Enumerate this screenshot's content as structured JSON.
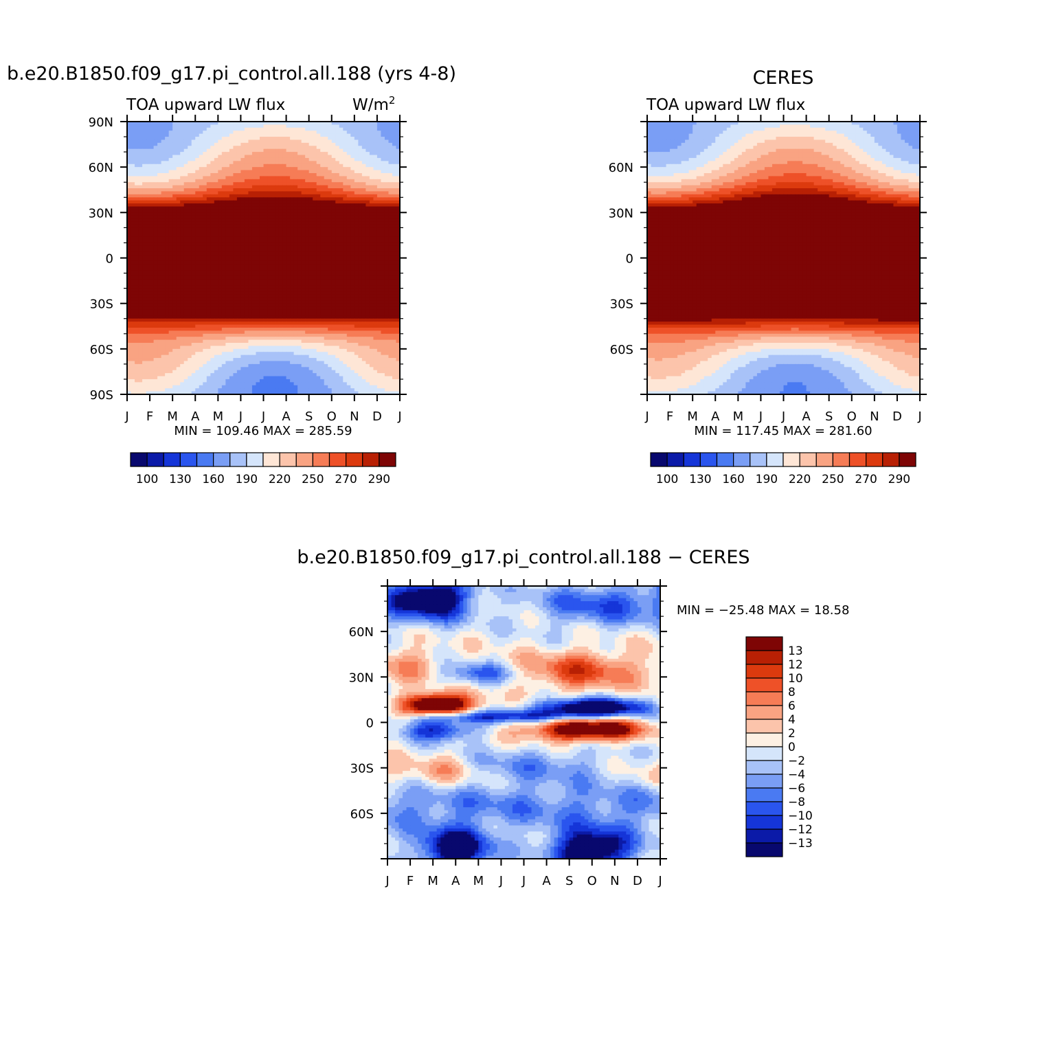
{
  "chart_data": [
    {
      "type": "heatmap",
      "id": "model",
      "title": "b.e20.B1850.f09_g17.pi_control.all.188 (yrs 4-8)",
      "subtitle_left": "TOA upward LW flux",
      "subtitle_right": "W/m",
      "subtitle_right_sup": "2",
      "x_ticks": [
        "J",
        "F",
        "M",
        "A",
        "M",
        "J",
        "J",
        "A",
        "S",
        "O",
        "N",
        "D",
        "J"
      ],
      "y_ticks": [
        "90N",
        "60N",
        "30N",
        "0",
        "30S",
        "60S",
        "90S"
      ],
      "ylim": [
        -90,
        90
      ],
      "min_max_text": "MIN =  109.46  MAX =  285.59",
      "min": 109.46,
      "max": 285.59,
      "colorbar_labels": [
        "100",
        "130",
        "160",
        "190",
        "220",
        "250",
        "270",
        "290"
      ],
      "levels": [
        100,
        110,
        120,
        130,
        140,
        150,
        160,
        170,
        180,
        190,
        200,
        210,
        220,
        230,
        240,
        250,
        260,
        270,
        280,
        290,
        300
      ]
    },
    {
      "type": "heatmap",
      "id": "obs",
      "title": "CERES",
      "subtitle_left": "TOA upward LW flux",
      "x_ticks": [
        "J",
        "F",
        "M",
        "A",
        "M",
        "J",
        "J",
        "A",
        "S",
        "O",
        "N",
        "D",
        "J"
      ],
      "y_ticks": [
        "60N",
        "30N",
        "0",
        "30S",
        "60S"
      ],
      "ylim": [
        -90,
        90
      ],
      "min_max_text": "MIN =  117.45  MAX =  281.60",
      "min": 117.45,
      "max": 281.6,
      "colorbar_labels": [
        "100",
        "130",
        "160",
        "190",
        "220",
        "250",
        "270",
        "290"
      ]
    },
    {
      "type": "heatmap",
      "id": "diff",
      "title": "b.e20.B1850.f09_g17.pi_control.all.188 − CERES",
      "x_ticks": [
        "J",
        "F",
        "M",
        "A",
        "M",
        "J",
        "J",
        "A",
        "S",
        "O",
        "N",
        "D",
        "J"
      ],
      "y_ticks": [
        "60N",
        "30N",
        "0",
        "30S",
        "60S"
      ],
      "ylim": [
        -90,
        90
      ],
      "min_max_text": "MIN = −25.48  MAX =   18.58",
      "min": -25.48,
      "max": 18.58,
      "colorbar_labels": [
        "13",
        "12",
        "10",
        "8",
        "6",
        "4",
        "2",
        "0",
        "−2",
        "−4",
        "−6",
        "−8",
        "−10",
        "−12",
        "−13"
      ],
      "levels": [
        -15,
        -13,
        -12,
        -10,
        -8,
        -6,
        -4,
        -2,
        0,
        2,
        4,
        6,
        8,
        10,
        12,
        13,
        15
      ]
    }
  ],
  "colors": {
    "flux_palette": [
      "#08086e",
      "#0b1aa8",
      "#1535d8",
      "#2a55ee",
      "#4a7af2",
      "#7a9ef5",
      "#a8c2f8",
      "#d5e5fb",
      "#fee6d6",
      "#fcc4ab",
      "#f9a382",
      "#f67c56",
      "#ee5128",
      "#dc3a0e",
      "#b82004",
      "#7e0505"
    ],
    "diff_palette": [
      "#08086e",
      "#0b1aa8",
      "#1535d8",
      "#2a55ee",
      "#4a7af2",
      "#7a9ef5",
      "#a8c2f8",
      "#d5e5fb",
      "#fdf0e3",
      "#fcc4ab",
      "#f9a382",
      "#f67c56",
      "#ee5128",
      "#dc3a0e",
      "#b82004",
      "#7e0505"
    ]
  }
}
